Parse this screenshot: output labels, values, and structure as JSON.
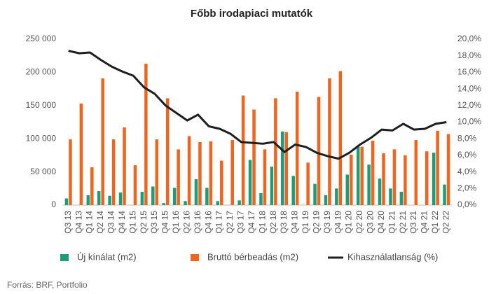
{
  "chart_data": {
    "type": "bar_line",
    "title": "Főbb irodapiaci mutatók",
    "source": "Forrás: BRF, Portfolio",
    "categories": [
      "Q3 13",
      "Q4 13",
      "Q1 14",
      "Q2 14",
      "Q3 14",
      "Q4 14",
      "Q1 15",
      "Q2 15",
      "Q3 15",
      "Q4 15",
      "Q1 16",
      "Q2 16",
      "Q3 16",
      "Q4 16",
      "Q1 17",
      "Q2 17",
      "Q3 17",
      "Q4 17",
      "Q1 18",
      "Q2 18",
      "Q3 18",
      "Q4 18",
      "Q1 19",
      "Q2 19",
      "Q3 19",
      "Q4 19",
      "Q1 20",
      "Q2 20",
      "Q3 20",
      "Q4 20",
      "Q1 21",
      "Q2 21",
      "Q3 21",
      "Q4 21",
      "Q1 22",
      "Q2 22"
    ],
    "series": [
      {
        "name": "Új kínálat (m2)",
        "color": "#1a9e77",
        "kind": "bar",
        "values": [
          10000,
          0,
          15000,
          21000,
          14000,
          19000,
          0,
          20000,
          28000,
          3000,
          26000,
          6000,
          39000,
          26000,
          6000,
          0,
          7000,
          68000,
          18000,
          58000,
          111000,
          44000,
          0,
          32000,
          15000,
          25000,
          46000,
          88000,
          61000,
          40000,
          25000,
          20000,
          0,
          0,
          79000,
          31000
        ]
      },
      {
        "name": "Bruttó bérbeadás (m2)",
        "color": "#f0641e",
        "kind": "bar",
        "values": [
          99000,
          153000,
          57000,
          191000,
          99000,
          117000,
          60000,
          213000,
          99000,
          161000,
          84000,
          104000,
          95000,
          96000,
          67000,
          98000,
          165000,
          144000,
          84000,
          161000,
          110000,
          171000,
          64000,
          163000,
          191000,
          202000,
          76000,
          88000,
          97000,
          78000,
          84000,
          75000,
          98000,
          81000,
          112000,
          107000
        ]
      },
      {
        "name": "Kihasználatlanság (%)",
        "color": "#1e1e1e",
        "kind": "line",
        "axis": "y2",
        "values": [
          18.6,
          18.3,
          18.4,
          17.5,
          16.7,
          16.1,
          15.6,
          14.2,
          13.4,
          12.0,
          11.1,
          10.2,
          10.9,
          9.5,
          9.2,
          8.6,
          7.6,
          7.5,
          7.4,
          7.6,
          6.4,
          7.3,
          7.0,
          6.3,
          5.9,
          5.6,
          6.3,
          7.3,
          8.1,
          9.1,
          9.0,
          9.8,
          9.1,
          9.2,
          9.8,
          10.0
        ]
      }
    ],
    "ylim": [
      0,
      250000
    ],
    "yticks": [
      0,
      {
        "value": 50000,
        "label": "50 000"
      },
      {
        "value": 100000,
        "label": "100 000"
      },
      {
        "value": 150000,
        "label": "150 000"
      },
      {
        "value": 200000,
        "label": "200 000"
      },
      {
        "value": 250000,
        "label": "250 000"
      }
    ],
    "y2lim": [
      0,
      20
    ],
    "y2ticks": [
      {
        "value": 0,
        "label": "0,0%"
      },
      {
        "value": 2,
        "label": "2,0%"
      },
      {
        "value": 4,
        "label": "4,0%"
      },
      {
        "value": 6,
        "label": "6,0%"
      },
      {
        "value": 8,
        "label": "8,0%"
      },
      {
        "value": 10,
        "label": "10,0%"
      },
      {
        "value": 12,
        "label": "12,0%"
      },
      {
        "value": 14,
        "label": "14,0%"
      },
      {
        "value": 16,
        "label": "16,0%"
      },
      {
        "value": 18,
        "label": "18,0%"
      },
      {
        "value": 20,
        "label": "20,0%"
      }
    ],
    "grid": false
  }
}
